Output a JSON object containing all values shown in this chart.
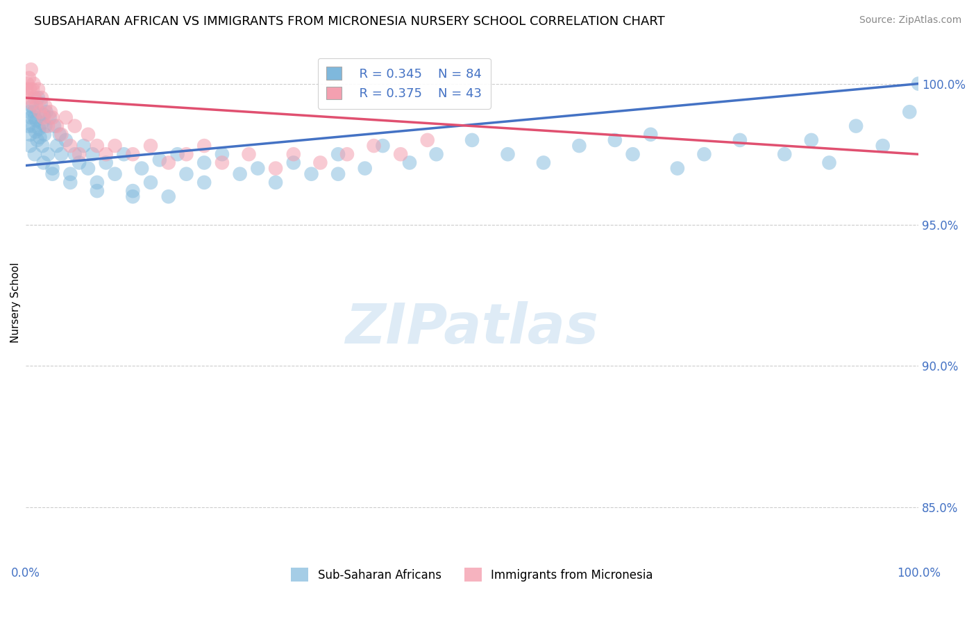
{
  "title": "SUBSAHARAN AFRICAN VS IMMIGRANTS FROM MICRONESIA NURSERY SCHOOL CORRELATION CHART",
  "source": "Source: ZipAtlas.com",
  "xlabel": "",
  "ylabel": "Nursery School",
  "xlim": [
    0.0,
    100.0
  ],
  "ylim": [
    83.0,
    101.5
  ],
  "yticks": [
    85.0,
    90.0,
    95.0,
    100.0
  ],
  "ytick_labels": [
    "85.0%",
    "90.0%",
    "95.0%",
    "100.0%"
  ],
  "xtick_labels": [
    "0.0%",
    "100.0%"
  ],
  "legend_r1": "R = 0.345",
  "legend_n1": "N = 84",
  "legend_r2": "R = 0.375",
  "legend_n2": "N = 43",
  "blue_color": "#7fb8dc",
  "pink_color": "#f4a0b0",
  "blue_line_color": "#4472c4",
  "pink_line_color": "#e05070",
  "blue_line_x0": 0.0,
  "blue_line_y0": 97.1,
  "blue_line_x1": 100.0,
  "blue_line_y1": 100.0,
  "pink_line_x0": 0.0,
  "pink_line_y0": 99.5,
  "pink_line_x1": 100.0,
  "pink_line_y1": 97.5,
  "blue_scatter_x": [
    0.3,
    0.4,
    0.5,
    0.6,
    0.7,
    0.8,
    0.9,
    1.0,
    1.1,
    1.2,
    1.3,
    1.4,
    1.5,
    1.6,
    1.7,
    1.8,
    1.9,
    2.0,
    2.1,
    2.2,
    2.3,
    2.5,
    2.7,
    3.0,
    3.2,
    3.5,
    3.8,
    4.0,
    4.5,
    5.0,
    5.5,
    6.0,
    6.5,
    7.0,
    7.5,
    8.0,
    9.0,
    10.0,
    11.0,
    12.0,
    13.0,
    14.0,
    15.0,
    16.0,
    17.0,
    18.0,
    20.0,
    22.0,
    24.0,
    26.0,
    28.0,
    30.0,
    32.0,
    35.0,
    38.0,
    40.0,
    43.0,
    46.0,
    50.0,
    54.0,
    58.0,
    62.0,
    66.0,
    68.0,
    70.0,
    73.0,
    76.0,
    80.0,
    85.0,
    88.0,
    90.0,
    93.0,
    96.0,
    99.0,
    100.0,
    0.5,
    1.0,
    2.0,
    3.0,
    5.0,
    8.0,
    12.0,
    20.0,
    35.0
  ],
  "blue_scatter_y": [
    98.5,
    99.0,
    98.2,
    98.8,
    99.2,
    98.5,
    99.0,
    98.8,
    98.3,
    98.7,
    98.0,
    99.5,
    98.4,
    98.1,
    99.3,
    98.6,
    97.8,
    98.9,
    98.2,
    98.5,
    99.0,
    97.5,
    98.8,
    97.0,
    98.5,
    97.8,
    98.2,
    97.5,
    98.0,
    96.8,
    97.5,
    97.2,
    97.8,
    97.0,
    97.5,
    96.5,
    97.2,
    96.8,
    97.5,
    96.2,
    97.0,
    96.5,
    97.3,
    96.0,
    97.5,
    96.8,
    97.2,
    97.5,
    96.8,
    97.0,
    96.5,
    97.2,
    96.8,
    97.5,
    97.0,
    97.8,
    97.2,
    97.5,
    98.0,
    97.5,
    97.2,
    97.8,
    98.0,
    97.5,
    98.2,
    97.0,
    97.5,
    98.0,
    97.5,
    98.0,
    97.2,
    98.5,
    97.8,
    99.0,
    100.0,
    97.8,
    97.5,
    97.2,
    96.8,
    96.5,
    96.2,
    96.0,
    96.5,
    96.8
  ],
  "pink_scatter_x": [
    0.1,
    0.2,
    0.3,
    0.4,
    0.5,
    0.6,
    0.7,
    0.8,
    0.9,
    1.0,
    1.2,
    1.4,
    1.6,
    1.8,
    2.0,
    2.2,
    2.5,
    2.8,
    3.0,
    3.5,
    4.0,
    4.5,
    5.0,
    5.5,
    6.0,
    7.0,
    8.0,
    9.0,
    10.0,
    12.0,
    14.0,
    16.0,
    18.0,
    20.0,
    22.0,
    25.0,
    28.0,
    30.0,
    33.0,
    36.0,
    39.0,
    42.0,
    45.0
  ],
  "pink_scatter_y": [
    99.8,
    100.0,
    99.5,
    100.2,
    99.8,
    100.5,
    99.3,
    99.8,
    100.0,
    99.5,
    99.2,
    99.8,
    99.0,
    99.5,
    98.8,
    99.2,
    98.5,
    99.0,
    98.8,
    98.5,
    98.2,
    98.8,
    97.8,
    98.5,
    97.5,
    98.2,
    97.8,
    97.5,
    97.8,
    97.5,
    97.8,
    97.2,
    97.5,
    97.8,
    97.2,
    97.5,
    97.0,
    97.5,
    97.2,
    97.5,
    97.8,
    97.5,
    98.0
  ]
}
